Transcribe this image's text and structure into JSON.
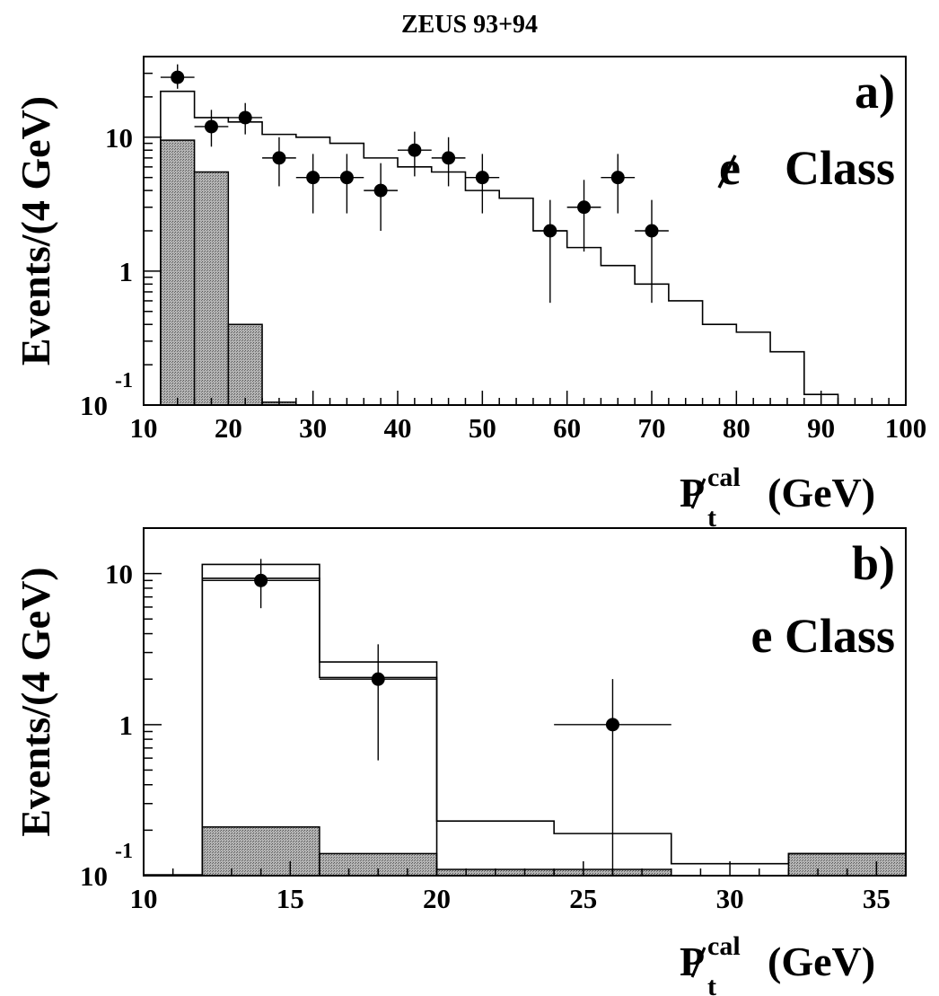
{
  "figure_title": "ZEUS 93+94",
  "colors": {
    "line": "#000000",
    "background_shading": "#9a9a9a",
    "background": "#ffffff"
  },
  "chart_data": [
    {
      "type": "histogram-with-points",
      "panel_label": "a)",
      "class_label_text": "Class",
      "class_label_symbol": "e-slash",
      "ylabel": "Events/(4 GeV)",
      "xlabel_main": "P",
      "xlabel_sub": "t",
      "xlabel_sup": "cal",
      "xlabel_unit": "(GeV)",
      "y_scale": "log",
      "xlim": [
        10,
        100
      ],
      "ylim": [
        0.1,
        40
      ],
      "x_ticks": [
        "10",
        "20",
        "30",
        "40",
        "50",
        "60",
        "70",
        "80",
        "90",
        "100"
      ],
      "x_tick_values": [
        10,
        20,
        30,
        40,
        50,
        60,
        70,
        80,
        90,
        100
      ],
      "y_ticks": [
        {
          "value": 10,
          "label": "10"
        },
        {
          "value": 1,
          "label": "1"
        }
      ],
      "y_bottom_label": "10",
      "y_bottom_exponent": "-1",
      "mc_total": [
        [
          12,
          16,
          22
        ],
        [
          16,
          20,
          14
        ],
        [
          20,
          24,
          13
        ],
        [
          24,
          28,
          10.5
        ],
        [
          28,
          32,
          10
        ],
        [
          32,
          36,
          9
        ],
        [
          36,
          40,
          7
        ],
        [
          40,
          44,
          6
        ],
        [
          44,
          48,
          5.5
        ],
        [
          48,
          52,
          4
        ],
        [
          52,
          56,
          3.5
        ],
        [
          56,
          60,
          2
        ],
        [
          60,
          64,
          1.5
        ],
        [
          64,
          68,
          1.1
        ],
        [
          68,
          72,
          0.8
        ],
        [
          72,
          76,
          0.6
        ],
        [
          76,
          80,
          0.4
        ],
        [
          80,
          84,
          0.35
        ],
        [
          84,
          88,
          0.25
        ],
        [
          88,
          92,
          0.12
        ]
      ],
      "background": [
        [
          12,
          16,
          9.5
        ],
        [
          16,
          20,
          5.5
        ],
        [
          20,
          24,
          0.4
        ],
        [
          24,
          28,
          0.105
        ]
      ],
      "data_points": [
        {
          "x": 14,
          "y": 28,
          "ylo": 23,
          "yhi": 35
        },
        {
          "x": 18,
          "y": 12,
          "ylo": 8.5,
          "yhi": 16
        },
        {
          "x": 22,
          "y": 14,
          "ylo": 10.5,
          "yhi": 18
        },
        {
          "x": 26,
          "y": 7,
          "ylo": 4.3,
          "yhi": 10
        },
        {
          "x": 30,
          "y": 5,
          "ylo": 2.7,
          "yhi": 7.5
        },
        {
          "x": 34,
          "y": 5,
          "ylo": 2.7,
          "yhi": 7.5
        },
        {
          "x": 38,
          "y": 4,
          "ylo": 2,
          "yhi": 6.4
        },
        {
          "x": 42,
          "y": 8,
          "ylo": 5.1,
          "yhi": 11
        },
        {
          "x": 46,
          "y": 7,
          "ylo": 4.3,
          "yhi": 10
        },
        {
          "x": 50,
          "y": 5,
          "ylo": 2.7,
          "yhi": 7.5
        },
        {
          "x": 58,
          "y": 2,
          "ylo": 0.58,
          "yhi": 3.4
        },
        {
          "x": 62,
          "y": 3,
          "ylo": 1.4,
          "yhi": 4.8
        },
        {
          "x": 66,
          "y": 5,
          "ylo": 2.7,
          "yhi": 7.5
        },
        {
          "x": 70,
          "y": 2,
          "ylo": 0.58,
          "yhi": 3.4
        }
      ]
    },
    {
      "type": "histogram-with-points",
      "panel_label": "b)",
      "class_label_text": "e Class",
      "ylabel": "Events/(4 GeV)",
      "xlabel_main": "P",
      "xlabel_sub": "t",
      "xlabel_sup": "cal",
      "xlabel_unit": "(GeV)",
      "y_scale": "log",
      "xlim": [
        10,
        36
      ],
      "ylim": [
        0.1,
        20
      ],
      "x_ticks": [
        "10",
        "15",
        "20",
        "25",
        "30",
        "35"
      ],
      "x_tick_values": [
        10,
        15,
        20,
        25,
        30,
        35
      ],
      "y_ticks": [
        {
          "value": 10,
          "label": "10"
        },
        {
          "value": 1,
          "label": "1"
        }
      ],
      "y_bottom_label": "10",
      "y_bottom_exponent": "-1",
      "mc_total": [
        [
          12,
          16,
          11.5
        ],
        [
          16,
          20,
          2.6
        ],
        [
          20,
          24,
          0.23
        ],
        [
          24,
          28,
          0.19
        ],
        [
          28,
          32,
          0.12
        ],
        [
          32,
          36,
          0.14
        ]
      ],
      "mc_secondary": [
        [
          12,
          16,
          9.3
        ],
        [
          16,
          20,
          2.05
        ]
      ],
      "background": [
        [
          12,
          16,
          0.21
        ],
        [
          16,
          20,
          0.14
        ],
        [
          20,
          24,
          0.11
        ],
        [
          24,
          28,
          0.11
        ],
        [
          28,
          32,
          0.1
        ],
        [
          32,
          36,
          0.14
        ]
      ],
      "data_points": [
        {
          "x": 14,
          "y": 9,
          "xlo": 12,
          "xhi": 16,
          "ylo": 5.9,
          "yhi": 12.5
        },
        {
          "x": 18,
          "y": 2,
          "xlo": 16,
          "xhi": 20,
          "ylo": 0.58,
          "yhi": 3.4
        },
        {
          "x": 26,
          "y": 1,
          "xlo": 24,
          "xhi": 28,
          "ylo": 0.1,
          "yhi": 2.0
        }
      ]
    }
  ]
}
